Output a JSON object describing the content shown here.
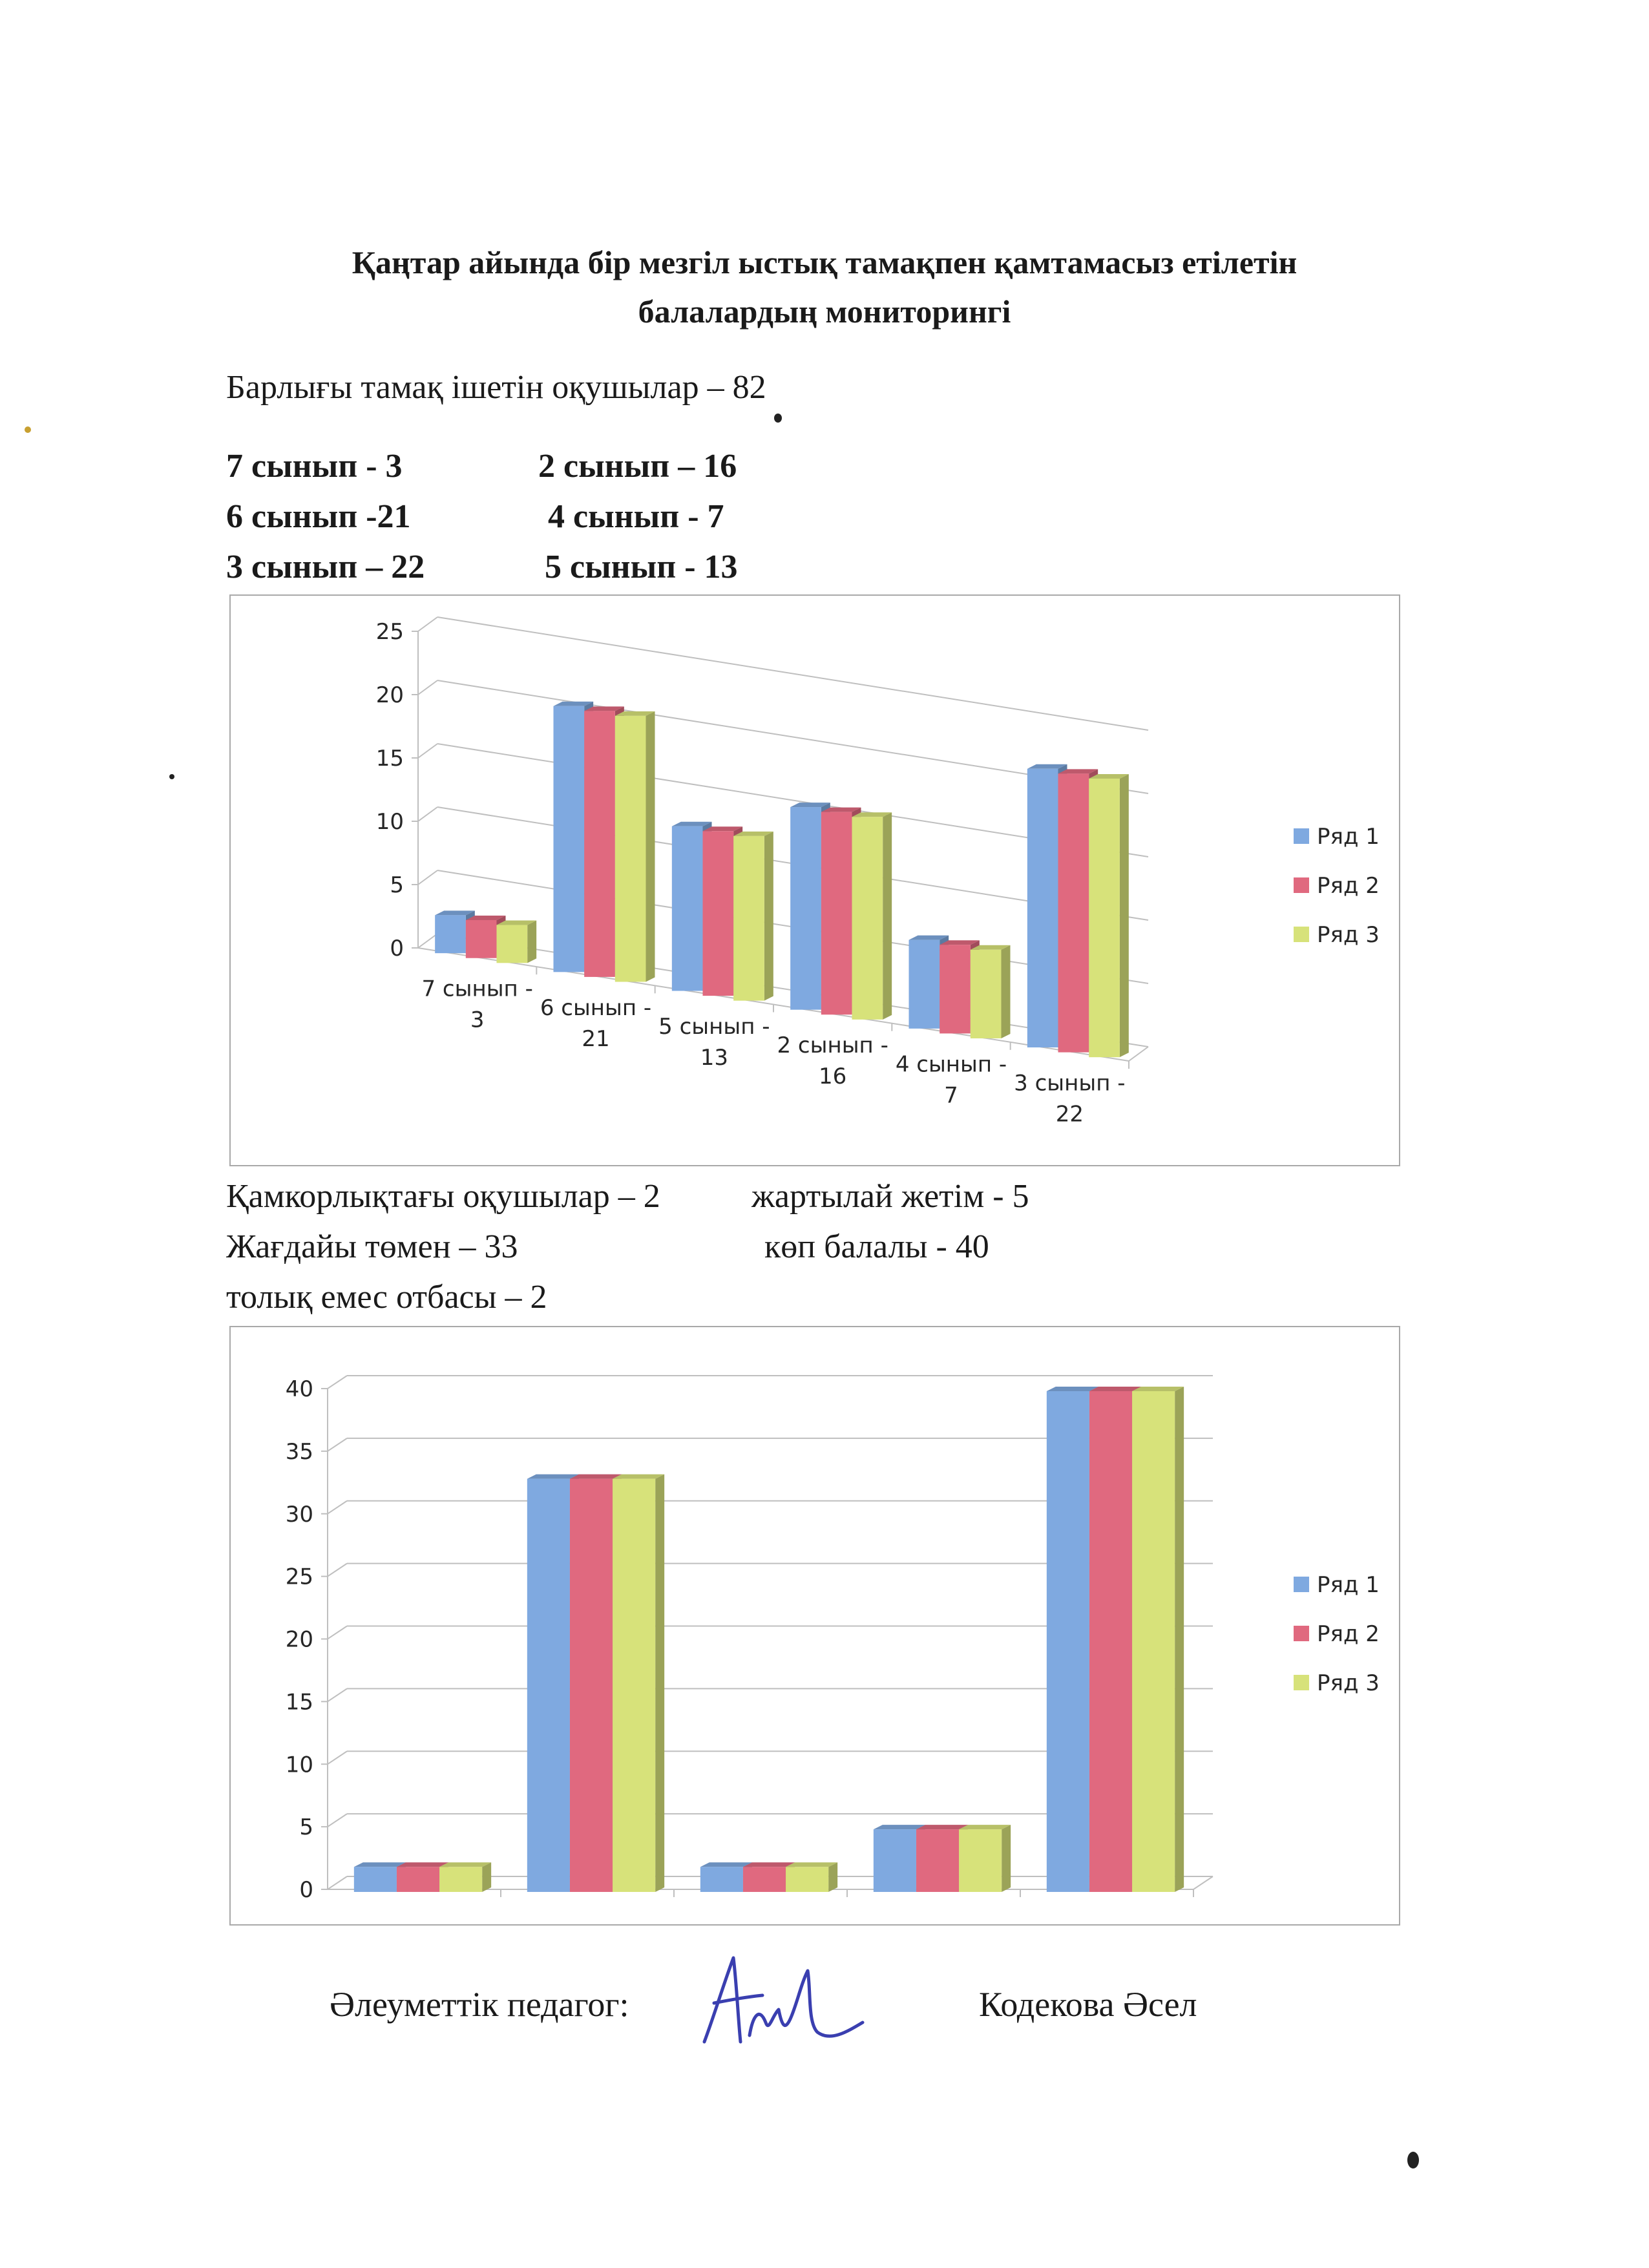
{
  "title": {
    "line1": "Қаңтар  айында бір мезгіл ыстық тамақпен қамтамасыз етілетін",
    "line2": "балалардың мониторингі"
  },
  "total_line": "Барлығы  тамақ ішетін оқушылар – 82",
  "classes": {
    "r1c1": "7 сынып - 3",
    "r1c2": "2 сынып –  16",
    "r2c1": "6 сынып -21",
    "r2c2": "4 сынып - 7",
    "r3c1": "3 сынып – 22",
    "r3c2": "5 сынып - 13"
  },
  "categories_text": {
    "r1c1": "Қамкорлықтағы оқушылар – 2",
    "r1c2": "жартылай жетім - 5",
    "r2c1": "Жағдайы төмен – 33",
    "r2c2": "көп балалы - 40",
    "r3c1": "толық емес отбасы – 2"
  },
  "colors": {
    "series1": "#7fa9e0",
    "series2": "#e0697f",
    "series3": "#d7e27a",
    "grid": "#bfbfbf",
    "frame": "#a9a9a9"
  },
  "chart_data": [
    {
      "type": "bar",
      "categories": [
        [
          "7 сынып -",
          "3"
        ],
        [
          "6 сынып -",
          "21"
        ],
        [
          "5 сынып -",
          "13"
        ],
        [
          "2 сынып -",
          "16"
        ],
        [
          "4 сынып -",
          "7"
        ],
        [
          "3 сынып -",
          "22"
        ]
      ],
      "series": [
        {
          "name": "Ряд 1",
          "values": [
            3,
            21,
            13,
            16,
            7,
            22
          ]
        },
        {
          "name": "Ряд 2",
          "values": [
            3,
            21,
            13,
            16,
            7,
            22
          ]
        },
        {
          "name": "Ряд 3",
          "values": [
            3,
            21,
            13,
            16,
            7,
            22
          ]
        }
      ],
      "yticks": [
        "0",
        "5",
        "10",
        "15",
        "20",
        "25"
      ],
      "ylim": [
        0,
        25
      ],
      "grid": true,
      "legend": "right",
      "style": "3d"
    },
    {
      "type": "bar",
      "categories": [
        [
          "",
          ""
        ],
        [
          "",
          ""
        ],
        [
          "",
          ""
        ],
        [
          "",
          ""
        ],
        [
          "",
          ""
        ]
      ],
      "series": [
        {
          "name": "Ряд 1",
          "values": [
            2,
            33,
            2,
            5,
            40
          ]
        },
        {
          "name": "Ряд 2",
          "values": [
            2,
            33,
            2,
            5,
            40
          ]
        },
        {
          "name": "Ряд 3",
          "values": [
            2,
            33,
            2,
            5,
            40
          ]
        }
      ],
      "yticks": [
        "0",
        "5",
        "10",
        "15",
        "20",
        "25",
        "30",
        "35",
        "40"
      ],
      "ylim": [
        0,
        40
      ],
      "grid": true,
      "legend": "right",
      "style": "3d"
    }
  ],
  "signature": {
    "role": "Әлеуметтік педагог:",
    "name": "Кодекова Әсел"
  }
}
